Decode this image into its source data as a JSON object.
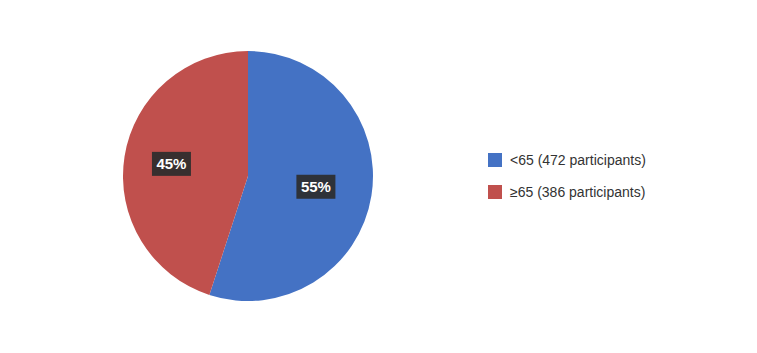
{
  "chart_data": {
    "type": "pie",
    "categories": [
      "<65 (472 participants)",
      "≥65 (386 participants)"
    ],
    "values": [
      55,
      45
    ],
    "value_labels": [
      "55%",
      "45%"
    ],
    "colors": [
      "#4472C4",
      "#C0504D"
    ],
    "data_labels": true,
    "legend": "right"
  }
}
